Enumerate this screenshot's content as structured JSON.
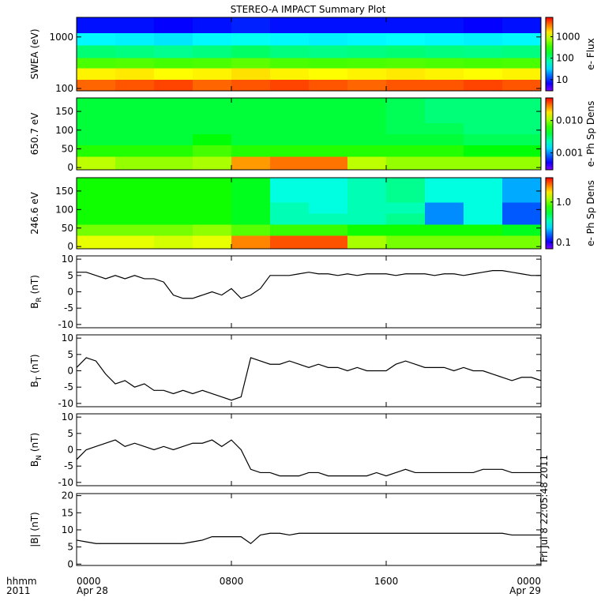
{
  "title": "STEREO-A IMPACT Summary Plot",
  "timestamp": "Fri Jul  8 22:05:48 2011",
  "x_axis": {
    "row_labels": [
      "hhmm",
      "2011"
    ],
    "xlim": [
      0,
      24
    ],
    "xticks": [
      {
        "value": 0,
        "label": "0000"
      },
      {
        "value": 8,
        "label": "0800"
      },
      {
        "value": 16,
        "label": "1600"
      },
      {
        "value": 24,
        "label": "0000"
      }
    ],
    "date_labels": [
      {
        "value": 0,
        "label": "Apr 28"
      },
      {
        "value": 24,
        "label": "Apr 29"
      }
    ],
    "x": [
      0,
      0.5,
      1,
      1.5,
      2,
      2.5,
      3,
      3.5,
      4,
      4.5,
      5,
      5.5,
      6,
      6.5,
      7,
      7.5,
      8,
      8.5,
      9,
      9.5,
      10,
      10.5,
      11,
      11.5,
      12,
      12.5,
      13,
      13.5,
      14,
      14.5,
      15,
      15.5,
      16,
      16.5,
      17,
      17.5,
      18,
      18.5,
      19,
      19.5,
      20,
      20.5,
      21,
      21.5,
      22,
      22.5,
      23,
      23.5,
      24
    ]
  },
  "chart_data": [
    {
      "type": "heatmap",
      "ylabel": "SWEA (eV)",
      "colorbar_label": "e- Flux",
      "ylog": true,
      "ylim": [
        90,
        2400
      ],
      "yticks": [
        100,
        1000
      ],
      "clim": [
        3,
        8000
      ],
      "cticks": [
        10,
        100,
        1000
      ],
      "x_bins": [
        0,
        2,
        4,
        6,
        8,
        10,
        12,
        14,
        16,
        18,
        20,
        22,
        24
      ],
      "y_bins": [
        90,
        150,
        250,
        400,
        700,
        1200,
        2400
      ],
      "values": [
        [
          4000,
          4500,
          5000,
          4000,
          4500,
          5000,
          4500,
          4000,
          4500,
          4500,
          5000,
          4500
        ],
        [
          1500,
          1600,
          1400,
          1500,
          1700,
          1500,
          1400,
          1500,
          1600,
          1500,
          1400,
          1500
        ],
        [
          400,
          420,
          380,
          400,
          450,
          400,
          380,
          400,
          420,
          400,
          380,
          400
        ],
        [
          110,
          100,
          90,
          100,
          120,
          100,
          95,
          100,
          110,
          100,
          95,
          100
        ],
        [
          40,
          38,
          35,
          40,
          45,
          40,
          38,
          40,
          42,
          40,
          38,
          40
        ],
        [
          8,
          8,
          7,
          8,
          9,
          8,
          8,
          8,
          8,
          8,
          7,
          8
        ]
      ]
    },
    {
      "type": "heatmap",
      "ylabel": "650.7 eV",
      "colorbar_label": "e- Ph Sp Dens",
      "ylim": [
        -6,
        186
      ],
      "yticks": [
        0,
        50,
        100,
        150
      ],
      "clim": [
        0.0003,
        0.05
      ],
      "cticks": [
        0.001,
        {
          "value": 0.01,
          "label": "0.010"
        }
      ],
      "x_bins": [
        0,
        2,
        4,
        6,
        8,
        10,
        12,
        14,
        16,
        18,
        20,
        22,
        24
      ],
      "y_bins": [
        -6,
        30,
        60,
        90,
        120,
        150,
        186
      ],
      "values": [
        [
          0.012,
          0.01,
          0.01,
          0.011,
          0.025,
          0.03,
          0.03,
          0.012,
          0.01,
          0.01,
          0.01,
          0.01
        ],
        [
          0.006,
          0.006,
          0.006,
          0.007,
          0.006,
          0.006,
          0.006,
          0.006,
          0.006,
          0.006,
          0.005,
          0.005
        ],
        [
          0.004,
          0.004,
          0.004,
          0.005,
          0.004,
          0.004,
          0.004,
          0.004,
          0.004,
          0.004,
          0.0035,
          0.0035
        ],
        [
          0.004,
          0.004,
          0.004,
          0.004,
          0.004,
          0.004,
          0.004,
          0.004,
          0.0035,
          0.0035,
          0.003,
          0.003
        ],
        [
          0.004,
          0.004,
          0.004,
          0.004,
          0.004,
          0.004,
          0.004,
          0.004,
          0.0035,
          0.003,
          0.003,
          0.003
        ],
        [
          0.004,
          0.004,
          0.004,
          0.004,
          0.004,
          0.004,
          0.004,
          0.004,
          0.0035,
          0.003,
          0.003,
          0.003
        ]
      ]
    },
    {
      "type": "heatmap",
      "ylabel": "246.6 eV",
      "colorbar_label": "e- Ph Sp Dens",
      "ylim": [
        -6,
        186
      ],
      "yticks": [
        0,
        50,
        100,
        150
      ],
      "clim": [
        0.07,
        4
      ],
      "cticks": [
        0.1,
        {
          "value": 1,
          "label": "1.0"
        }
      ],
      "x_bins": [
        0,
        2,
        4,
        6,
        8,
        10,
        12,
        14,
        16,
        18,
        20,
        22,
        24
      ],
      "y_bins": [
        -6,
        30,
        60,
        90,
        120,
        150,
        186
      ],
      "values": [
        [
          1.5,
          1.5,
          1.4,
          1.5,
          2.5,
          3,
          3,
          1.2,
          1,
          1,
          1,
          1
        ],
        [
          1,
          1,
          1,
          1.1,
          0.9,
          0.8,
          0.8,
          0.7,
          0.7,
          0.7,
          0.7,
          0.6
        ],
        [
          0.7,
          0.7,
          0.7,
          0.7,
          0.6,
          0.35,
          0.35,
          0.35,
          0.4,
          0.18,
          0.3,
          0.15
        ],
        [
          0.7,
          0.7,
          0.7,
          0.7,
          0.6,
          0.35,
          0.3,
          0.35,
          0.35,
          0.18,
          0.3,
          0.15
        ],
        [
          0.7,
          0.7,
          0.7,
          0.7,
          0.6,
          0.3,
          0.3,
          0.35,
          0.4,
          0.3,
          0.3,
          0.2
        ],
        [
          0.7,
          0.7,
          0.7,
          0.7,
          0.6,
          0.3,
          0.3,
          0.35,
          0.4,
          0.3,
          0.3,
          0.2
        ]
      ]
    },
    {
      "type": "line",
      "ylabel": "B",
      "ylabel_sub": "R",
      "ylabel_unit": "(nT)",
      "ylim": [
        -11,
        11
      ],
      "yticks": [
        -10,
        -5,
        0,
        5,
        10
      ],
      "color": "#000000",
      "values": [
        6,
        6,
        5,
        4,
        5,
        4,
        5,
        4,
        4,
        3,
        -1,
        -2,
        -2,
        -1,
        0,
        -1,
        1,
        -2,
        -1,
        1,
        5,
        5,
        5,
        5.5,
        6,
        5.5,
        5.5,
        5,
        5.5,
        5,
        5.5,
        5.5,
        5.5,
        5,
        5.5,
        5.5,
        5.5,
        5,
        5.5,
        5.5,
        5,
        5.5,
        6,
        6.5,
        6.5,
        6,
        5.5,
        5,
        5
      ]
    },
    {
      "type": "line",
      "ylabel": "B",
      "ylabel_sub": "T",
      "ylabel_unit": "(nT)",
      "ylim": [
        -11,
        11
      ],
      "yticks": [
        -10,
        -5,
        0,
        5,
        10
      ],
      "color": "#000000",
      "values": [
        1,
        4,
        3,
        -1,
        -4,
        -3,
        -5,
        -4,
        -6,
        -6,
        -7,
        -6,
        -7,
        -6,
        -7,
        -8,
        -9,
        -8,
        4,
        3,
        2,
        2,
        3,
        2,
        1,
        2,
        1,
        1,
        0,
        1,
        0,
        0,
        0,
        2,
        3,
        2,
        1,
        1,
        1,
        0,
        1,
        0,
        0,
        -1,
        -2,
        -3,
        -2,
        -2,
        -3
      ]
    },
    {
      "type": "line",
      "ylabel": "B",
      "ylabel_sub": "N",
      "ylabel_unit": "(nT)",
      "ylim": [
        -11,
        11
      ],
      "yticks": [
        -10,
        -5,
        0,
        5,
        10
      ],
      "color": "#000000",
      "values": [
        -3,
        0,
        1,
        2,
        3,
        1,
        2,
        1,
        0,
        1,
        0,
        1,
        2,
        2,
        3,
        1,
        3,
        0,
        -6,
        -7,
        -7,
        -8,
        -8,
        -8,
        -7,
        -7,
        -8,
        -8,
        -8,
        -8,
        -8,
        -7,
        -8,
        -7,
        -6,
        -7,
        -7,
        -7,
        -7,
        -7,
        -7,
        -7,
        -6,
        -6,
        -6,
        -7,
        -7,
        -7,
        -7
      ]
    },
    {
      "type": "line",
      "ylabel": "|B| (nT)",
      "ylim": [
        -0.4,
        20.6
      ],
      "yticks": [
        0,
        5,
        10,
        15,
        20
      ],
      "color": "#000000",
      "values": [
        7,
        6.5,
        6,
        6,
        6,
        6,
        6,
        6,
        6,
        6,
        6,
        6,
        6.5,
        7,
        8,
        8,
        8,
        8,
        6,
        8.5,
        9,
        9,
        8.5,
        9,
        9,
        9,
        9,
        9,
        9,
        9,
        9,
        9,
        9,
        9,
        9,
        9,
        9,
        9,
        9,
        9,
        9,
        9,
        9,
        9,
        9,
        8.5,
        8.5,
        8.5,
        8.5
      ]
    }
  ]
}
